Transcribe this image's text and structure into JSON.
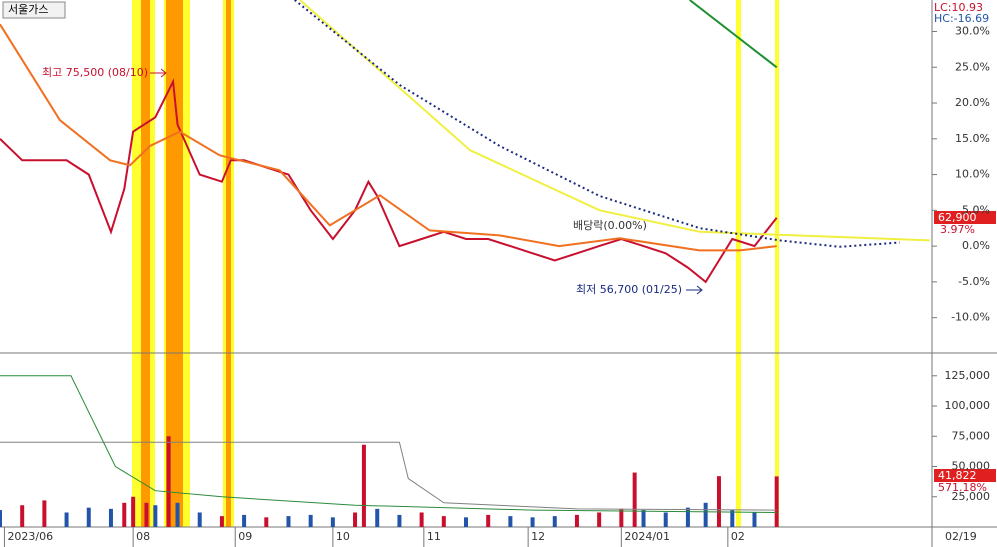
{
  "chart_data": {
    "type": "stock",
    "stock_name": "서울가스",
    "lc_label": "LC:10.93",
    "hc_label": "HC:-16.69",
    "price_label": "62,900",
    "change_label": "3.97%",
    "high_note": "최고 75,500 (08/10)",
    "low_note": "최저 56,700 (01/25)",
    "dividend_note": "배당락(0.00%)",
    "volume_label": "41,822",
    "volume_ratio_label": "571.18%",
    "end_date_label": "02/19",
    "xlim": [
      0,
      210
    ],
    "xticks": [
      {
        "value": 1,
        "label": "2023/06"
      },
      {
        "value": 30,
        "label": "08"
      },
      {
        "value": 53,
        "label": "09"
      },
      {
        "value": 75,
        "label": "10"
      },
      {
        "value": 95.5,
        "label": "11"
      },
      {
        "value": 119,
        "label": "12"
      },
      {
        "value": 140,
        "label": "2024/01"
      },
      {
        "value": 164,
        "label": "02"
      }
    ],
    "ylim": [
      -14.8,
      34.4
    ],
    "yticks": [
      {
        "value": -10,
        "label": "-10.0%"
      },
      {
        "value": -5,
        "label": "-5.0%"
      },
      {
        "value": 0,
        "label": "0.0%"
      },
      {
        "value": 5,
        "label": "5.0%"
      },
      {
        "value": 10,
        "label": "10.0%"
      },
      {
        "value": 15,
        "label": "15.0%"
      },
      {
        "value": 20,
        "label": "20.0%"
      },
      {
        "value": 25,
        "label": "25.0%"
      },
      {
        "value": 30,
        "label": "30.0%"
      }
    ],
    "price_series": [
      {
        "name": "close",
        "color": "#c8102e",
        "width": 2,
        "x": [
          0,
          5,
          10,
          15,
          20,
          25,
          28,
          30,
          35,
          39,
          40,
          45,
          50,
          52,
          55,
          60,
          65,
          70,
          75,
          80,
          83,
          85,
          90,
          95,
          100,
          105,
          110,
          115,
          120,
          125,
          130,
          135,
          140,
          145,
          150,
          155,
          159,
          162,
          165,
          170,
          175
        ],
        "values": [
          15,
          12,
          12,
          12,
          10,
          2,
          8,
          16,
          18,
          23,
          17,
          10,
          9,
          12,
          12,
          11,
          10,
          5,
          1,
          5,
          9,
          7,
          0,
          1,
          2,
          1,
          1,
          0,
          -1,
          -2,
          -1,
          0,
          1,
          0,
          -1,
          -3,
          -5,
          -2,
          1,
          0,
          3.97
        ]
      },
      {
        "name": "ma20",
        "color": "#f07020",
        "width": 2,
        "x": [
          0,
          13.5,
          24.8,
          29.3,
          33.8,
          40.5,
          49.5,
          63,
          74.3,
          85.6,
          96.8,
          112.6,
          126,
          139.6,
          157.6,
          166.7,
          175
        ],
        "values": [
          31,
          17.6,
          12,
          11.3,
          14,
          16,
          12.7,
          10.6,
          2.9,
          7.1,
          2.2,
          1.5,
          0,
          1.1,
          -0.6,
          -0.6,
          0
        ]
      },
      {
        "name": "ma60",
        "color": "#f0f040",
        "width": 2,
        "x": [
          67.6,
          105.9,
          135.1,
          157.7,
          209.5
        ],
        "values": [
          34.4,
          13.4,
          5,
          2,
          0.8
        ]
      },
      {
        "name": "ma120",
        "color": "#1a2a80",
        "width": 2,
        "dash": true,
        "x": [
          66.4,
          90.1,
          112.6,
          135.1,
          157.7,
          175.7,
          189.2,
          202.7
        ],
        "values": [
          34.4,
          22.5,
          14,
          7,
          2.5,
          0.8,
          -0.1,
          0.5
        ]
      },
      {
        "name": "ma240",
        "color": "#1a9030",
        "width": 2,
        "x": [
          155.4,
          175
        ],
        "values": [
          34.4,
          25
        ]
      }
    ],
    "vlim": [
      0,
      143000
    ],
    "vticks": [
      {
        "value": 25000,
        "label": "25,000"
      },
      {
        "value": 50000,
        "label": "50,000"
      },
      {
        "value": 75000,
        "label": "75,000"
      },
      {
        "value": 100000,
        "label": "100,000"
      },
      {
        "value": 125000,
        "label": "125,000"
      }
    ],
    "volume": {
      "x": [
        0,
        5,
        10,
        15,
        20,
        25,
        28,
        30,
        33,
        35,
        38,
        40,
        45,
        50,
        55,
        60,
        65,
        70,
        75,
        80,
        82,
        85,
        90,
        95,
        100,
        105,
        110,
        115,
        120,
        125,
        130,
        135,
        140,
        143,
        145,
        150,
        155,
        159,
        162,
        165,
        170,
        175
      ],
      "values": [
        14000,
        18000,
        22000,
        12000,
        16000,
        15000,
        20000,
        25000,
        20000,
        18000,
        75000,
        20000,
        12000,
        9000,
        10000,
        8000,
        9000,
        10000,
        8000,
        12000,
        68000,
        15000,
        10000,
        12000,
        9000,
        8000,
        10000,
        9000,
        8000,
        9000,
        10000,
        12000,
        15000,
        45000,
        14000,
        12000,
        16000,
        20000,
        42000,
        14000,
        12000,
        41822
      ],
      "colors": [
        "#2255aa",
        "#c8102e",
        "#c8102e",
        "#2255aa",
        "#2255aa",
        "#2255aa",
        "#c8102e",
        "#c8102e",
        "#c8102e",
        "#2255aa",
        "#c8102e",
        "#2255aa",
        "#2255aa",
        "#c8102e",
        "#2255aa",
        "#c8102e",
        "#2255aa",
        "#2255aa",
        "#2255aa",
        "#c8102e",
        "#c8102e",
        "#2255aa",
        "#2255aa",
        "#c8102e",
        "#c8102e",
        "#2255aa",
        "#c8102e",
        "#2255aa",
        "#2255aa",
        "#2255aa",
        "#c8102e",
        "#c8102e",
        "#c8102e",
        "#c8102e",
        "#2255aa",
        "#2255aa",
        "#2255aa",
        "#2255aa",
        "#c8102e",
        "#2255aa",
        "#2255aa",
        "#c8102e"
      ]
    },
    "volume_series": [
      {
        "name": "vma-long",
        "color": "#808080",
        "x": [
          0,
          50,
          90,
          92,
          100,
          130,
          175
        ],
        "values": [
          70000,
          70000,
          70000,
          40000,
          20000,
          15000,
          14000
        ]
      },
      {
        "name": "vma-mid",
        "color": "#2a8a3a",
        "x": [
          0,
          16,
          26,
          35,
          50,
          80,
          120,
          175
        ],
        "values": [
          125000,
          125000,
          50000,
          30000,
          25000,
          18000,
          14000,
          12000
        ]
      }
    ]
  }
}
